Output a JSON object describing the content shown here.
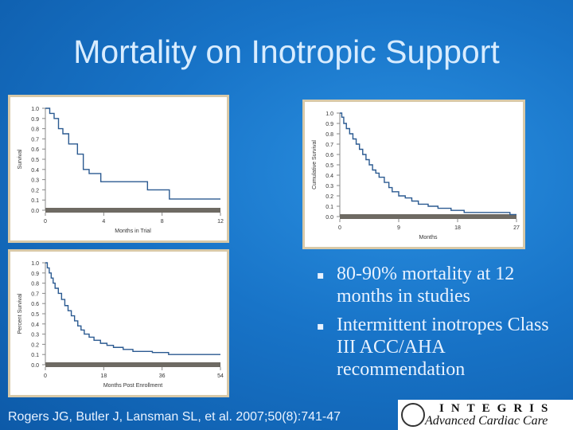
{
  "slide": {
    "title": "Mortality on Inotropic Support",
    "bullets": [
      "80-90% mortality at 12 months in studies",
      "Intermittent inotropes Class III ACC/AHA recommendation"
    ],
    "citation": "Rogers JG, Butler J, Lansman SL, et al.  2007;50(8):741-47",
    "logo": {
      "line1": "INTEGRIS",
      "line2": "Advanced Cardiac Care"
    }
  },
  "colors": {
    "line": "#2b5a91",
    "zero_band": "#6e6a63",
    "panel_border": "#d8c9a8"
  },
  "chart_data": [
    {
      "type": "line",
      "step": true,
      "title": "",
      "xlabel": "Months in Trial",
      "ylabel": "Survival",
      "xlim": [
        0,
        12
      ],
      "ylim": [
        0,
        1.0
      ],
      "xticks": [
        "0",
        "4",
        "8",
        "12"
      ],
      "yticks": [
        "1.0",
        "0.9",
        "0.8",
        "0.7",
        "0.6",
        "0.5",
        "0.4",
        "0.3",
        "0.2",
        "0.1",
        "0.0"
      ],
      "x": [
        0,
        0.3,
        0.6,
        0.9,
        1.2,
        1.6,
        2.2,
        2.6,
        3.0,
        3.4,
        3.8,
        4.3,
        7.0,
        8.5,
        12
      ],
      "y": [
        1.0,
        0.95,
        0.9,
        0.8,
        0.75,
        0.65,
        0.55,
        0.4,
        0.36,
        0.36,
        0.28,
        0.28,
        0.2,
        0.11,
        0.11
      ]
    },
    {
      "type": "line",
      "step": true,
      "title": "",
      "xlabel": "Months",
      "ylabel": "Cumulative Survival",
      "xlim": [
        0,
        27
      ],
      "ylim": [
        0,
        1.0
      ],
      "xticks": [
        "0",
        "9",
        "18",
        "27"
      ],
      "yticks": [
        "1.0",
        "0.9",
        "0.8",
        "0.7",
        "0.6",
        "0.5",
        "0.4",
        "0.3",
        "0.2",
        "0.1",
        "0.0"
      ],
      "x": [
        0,
        0.3,
        0.6,
        1.0,
        1.5,
        2.0,
        2.5,
        3.0,
        3.5,
        4.0,
        4.5,
        5.0,
        5.5,
        6.0,
        6.8,
        7.5,
        8.0,
        9.0,
        10.0,
        11.0,
        12.0,
        13.5,
        15.0,
        17.0,
        19.0,
        26.0,
        27
      ],
      "y": [
        1.0,
        0.96,
        0.9,
        0.85,
        0.8,
        0.75,
        0.7,
        0.65,
        0.6,
        0.55,
        0.5,
        0.45,
        0.42,
        0.38,
        0.33,
        0.28,
        0.24,
        0.2,
        0.18,
        0.15,
        0.12,
        0.1,
        0.08,
        0.06,
        0.04,
        0.02,
        0.02
      ]
    },
    {
      "type": "line",
      "step": true,
      "title": "",
      "xlabel": "Months Post Enrollment",
      "ylabel": "Percent Survival",
      "xlim": [
        0,
        54
      ],
      "ylim": [
        0,
        1.0
      ],
      "xticks": [
        "0",
        "18",
        "36",
        "54"
      ],
      "yticks": [
        "1.0",
        "0.9",
        "0.8",
        "0.7",
        "0.6",
        "0.5",
        "0.4",
        "0.3",
        "0.2",
        "0.1",
        "0.0"
      ],
      "x": [
        0,
        0.6,
        1.2,
        1.8,
        2.4,
        3.0,
        4.0,
        5.0,
        6.0,
        7.0,
        8.0,
        9.0,
        10.0,
        11.0,
        12.0,
        13.5,
        15.0,
        17.0,
        19.0,
        21.0,
        24.0,
        27.0,
        30.0,
        33.0,
        36.0,
        38.0,
        54
      ],
      "y": [
        1.0,
        0.95,
        0.9,
        0.85,
        0.8,
        0.75,
        0.7,
        0.64,
        0.58,
        0.53,
        0.48,
        0.43,
        0.38,
        0.34,
        0.3,
        0.27,
        0.24,
        0.21,
        0.19,
        0.17,
        0.15,
        0.13,
        0.13,
        0.12,
        0.12,
        0.1,
        0.1
      ]
    }
  ]
}
